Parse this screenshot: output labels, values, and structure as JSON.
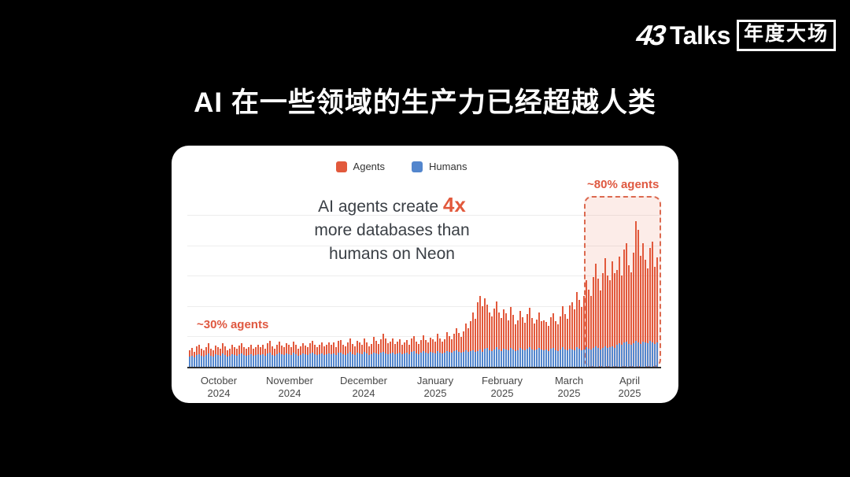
{
  "logo": {
    "brand_num": "43",
    "brand_rest": "Talks",
    "badge": "年度大场"
  },
  "title": "AI 在一些领域的生产力已经超越人类",
  "card": {
    "legend": [
      {
        "label": "Agents",
        "color": "#e2593c"
      },
      {
        "label": "Humans",
        "color": "#5386cd"
      }
    ],
    "headline": {
      "line1_prefix": "AI agents create ",
      "highlight": "4x",
      "line2": "more databases than",
      "line3": "humans on Neon",
      "highlight_color": "#e2593c"
    },
    "annotations": {
      "left_label": "~30% agents",
      "right_label": "~80% agents",
      "color": "#df5840"
    }
  },
  "chart_data": {
    "type": "bar",
    "stacked": true,
    "title": "AI agents create 4x more databases than humans on Neon",
    "legend_position": "top-center",
    "grid": true,
    "ylabel": "",
    "xlabel": "",
    "unit": "databases created per day (relative height units; y-axis unlabeled)",
    "series_names": [
      "Humans",
      "Agents"
    ],
    "colors": {
      "agents": "#e2593c",
      "humans": "#5386cd"
    },
    "months": [
      {
        "label": "October",
        "year": "2024"
      },
      {
        "label": "November",
        "year": "2024"
      },
      {
        "label": "December",
        "year": "2024"
      },
      {
        "label": "January",
        "year": "2025"
      },
      {
        "label": "February",
        "year": "2025"
      },
      {
        "label": "March",
        "year": "2025"
      },
      {
        "label": "April",
        "year": "2025"
      }
    ],
    "highlight_region": {
      "label": "~80% agents",
      "start_index": 168,
      "end_index": 198
    },
    "annotation_left": {
      "label": "~30% agents",
      "applies_to": "October 2024 – January 2025"
    },
    "humans": [
      13,
      14,
      12,
      15,
      16,
      14,
      13,
      15,
      17,
      14,
      13,
      16,
      15,
      14,
      17,
      15,
      13,
      14,
      16,
      15,
      14,
      16,
      17,
      15,
      14,
      15,
      16,
      14,
      15,
      16,
      15,
      16,
      14,
      17,
      18,
      15,
      14,
      16,
      18,
      16,
      15,
      17,
      16,
      15,
      18,
      16,
      14,
      15,
      17,
      16,
      15,
      17,
      18,
      16,
      15,
      16,
      17,
      15,
      16,
      17,
      16,
      17,
      15,
      18,
      18,
      16,
      15,
      17,
      19,
      16,
      15,
      18,
      17,
      16,
      19,
      17,
      15,
      16,
      18,
      17,
      16,
      18,
      19,
      17,
      16,
      17,
      18,
      16,
      17,
      18,
      16,
      17,
      18,
      16,
      19,
      20,
      17,
      16,
      18,
      20,
      18,
      17,
      19,
      18,
      17,
      20,
      18,
      17,
      18,
      20,
      19,
      18,
      20,
      21,
      19,
      18,
      19,
      21,
      19,
      20,
      21,
      19,
      20,
      22,
      19,
      23,
      24,
      21,
      20,
      22,
      25,
      22,
      20,
      23,
      22,
      21,
      24,
      22,
      20,
      21,
      24,
      22,
      21,
      23,
      25,
      22,
      21,
      22,
      24,
      22,
      21,
      22,
      20,
      23,
      24,
      21,
      20,
      22,
      25,
      22,
      21,
      23,
      22,
      21,
      25,
      23,
      21,
      22,
      25,
      23,
      22,
      24,
      26,
      24,
      22,
      24,
      26,
      24,
      25,
      26,
      24,
      28,
      30,
      28,
      31,
      32,
      29,
      28,
      30,
      33,
      31,
      29,
      32,
      31,
      30,
      33,
      31,
      29,
      31
    ],
    "agents": [
      8,
      10,
      7,
      11,
      12,
      9,
      8,
      10,
      13,
      9,
      8,
      11,
      10,
      9,
      13,
      11,
      8,
      9,
      12,
      10,
      9,
      11,
      13,
      10,
      9,
      10,
      12,
      9,
      10,
      12,
      10,
      12,
      9,
      13,
      15,
      11,
      9,
      12,
      14,
      11,
      10,
      13,
      12,
      10,
      14,
      12,
      9,
      11,
      13,
      11,
      10,
      13,
      15,
      12,
      10,
      12,
      14,
      11,
      12,
      14,
      12,
      14,
      10,
      15,
      16,
      12,
      11,
      14,
      17,
      13,
      11,
      15,
      14,
      12,
      17,
      14,
      11,
      13,
      20,
      16,
      13,
      17,
      23,
      19,
      14,
      15,
      18,
      13,
      15,
      17,
      12,
      14,
      16,
      12,
      17,
      19,
      15,
      13,
      16,
      20,
      16,
      14,
      18,
      17,
      15,
      22,
      18,
      15,
      17,
      24,
      20,
      17,
      22,
      28,
      24,
      20,
      26,
      34,
      30,
      38,
      48,
      42,
      62,
      68,
      58,
      64,
      55,
      48,
      44,
      52,
      58,
      47,
      42,
      50,
      46,
      38,
      52,
      44,
      34,
      38,
      47,
      41,
      35,
      44,
      50,
      40,
      34,
      38,
      45,
      36,
      38,
      35,
      32,
      40,
      44,
      37,
      34,
      42,
      52,
      45,
      40,
      55,
      60,
      52,
      70,
      62,
      55,
      68,
      85,
      75,
      68,
      90,
      105,
      88,
      75,
      95,
      112,
      92,
      85,
      108,
      95,
      95,
      110,
      88,
      118,
      125,
      100,
      92,
      115,
      152,
      143,
      112,
      125,
      105,
      95,
      118,
      128,
      98,
      108
    ]
  }
}
